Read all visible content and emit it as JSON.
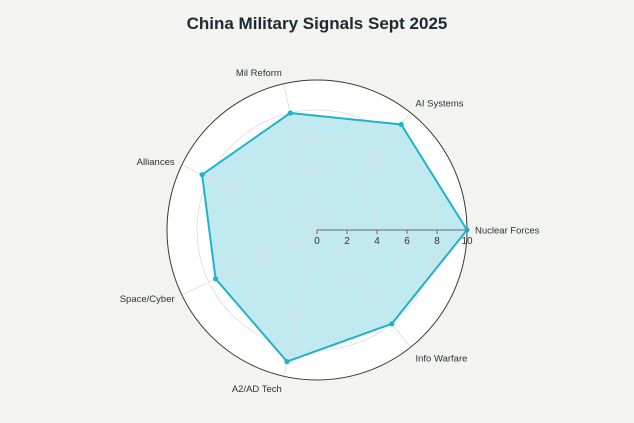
{
  "chart_data": {
    "type": "radar",
    "title": "China Military Signals Sept 2025",
    "categories": [
      "Nuclear Forces",
      "AI Systems",
      "Mil Reform",
      "Alliances",
      "Space/Cyber",
      "A2/AD Tech",
      "Info Warfare"
    ],
    "series": [
      {
        "values": [
          10,
          9,
          8,
          8.5,
          7.5,
          9,
          8
        ]
      }
    ],
    "radial_ticks": [
      "0",
      "2",
      "4",
      "6",
      "8",
      "10"
    ],
    "rlim": [
      0,
      10
    ],
    "grid": true,
    "colors": {
      "line": "#1fb3c9",
      "fill": "#bde9ef",
      "plot_bg": "#ffffff",
      "page_bg": "#f3f4ef",
      "grid": "#dcdcdc",
      "outer_ring": "#3a3a3a"
    }
  }
}
